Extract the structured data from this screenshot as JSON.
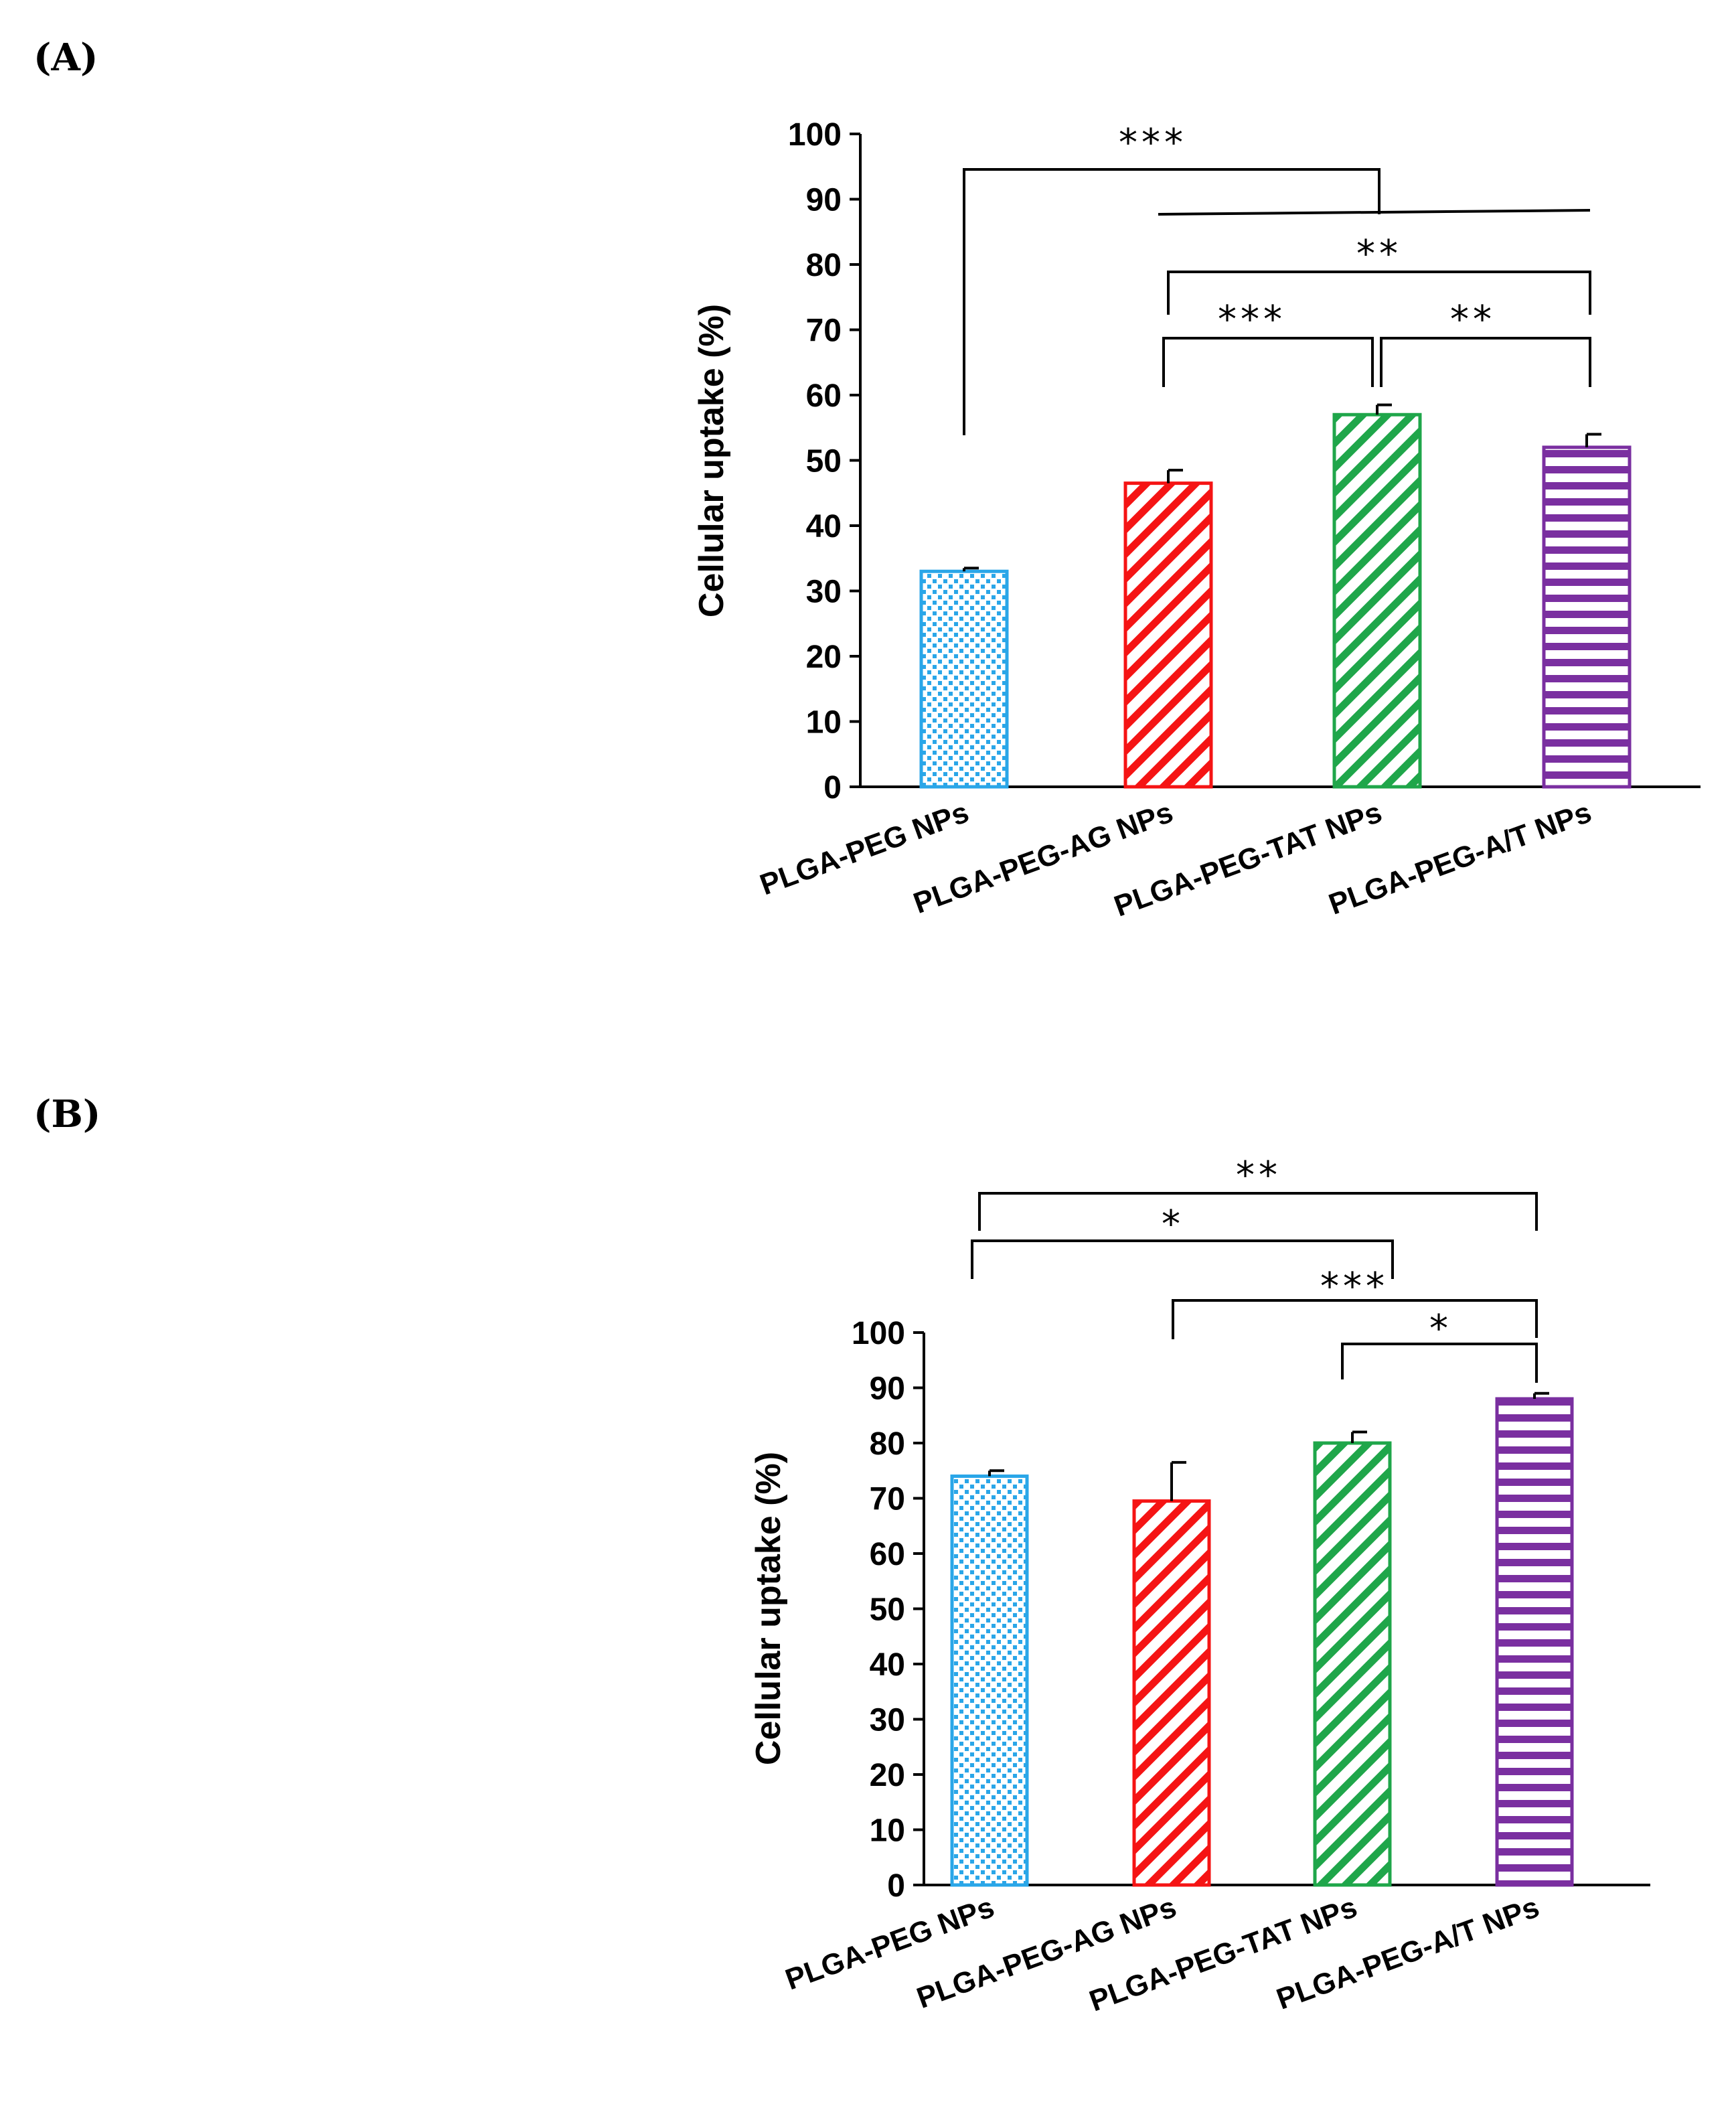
{
  "colors": {
    "PLGA-PEG NPs": "#2aa6e8",
    "PLGA-PEG-AG NPs": "#f51414",
    "PLGA-PEG-TAT NPs": "#1fa64a",
    "PLGA-PEG-A/T NPs": "#7a2fa0"
  },
  "chart_data": [
    {
      "panel": "(A)",
      "type": "bar",
      "ylabel": "Cellular uptake (%)",
      "ylim": [
        0,
        100
      ],
      "yticks": [
        0,
        10,
        20,
        30,
        40,
        50,
        60,
        70,
        80,
        90,
        100
      ],
      "categories": [
        "PLGA-PEG NPs",
        "PLGA-PEG-AG NPs",
        "PLGA-PEG-TAT NPs",
        "PLGA-PEG-A/T NPs"
      ],
      "values": [
        33,
        46.5,
        57,
        52
      ],
      "errors": [
        0.5,
        2,
        1.5,
        2
      ],
      "patterns": [
        "dots",
        "diagonal",
        "diagonal",
        "horizontal"
      ],
      "significance": [
        {
          "label": "***",
          "groups": [
            0,
            1,
            2,
            3
          ]
        },
        {
          "label": "**",
          "groups": [
            1,
            3
          ]
        },
        {
          "label": "***",
          "groups": [
            1,
            2
          ]
        },
        {
          "label": "**",
          "groups": [
            2,
            3
          ]
        }
      ]
    },
    {
      "panel": "(B)",
      "type": "bar",
      "ylabel": "Cellular uptake (%)",
      "ylim": [
        0,
        100
      ],
      "yticks": [
        0,
        10,
        20,
        30,
        40,
        50,
        60,
        70,
        80,
        90,
        100
      ],
      "categories": [
        "PLGA-PEG NPs",
        "PLGA-PEG-AG NPs",
        "PLGA-PEG-TAT NPs",
        "PLGA-PEG-A/T NPs"
      ],
      "values": [
        74,
        69.5,
        80,
        88
      ],
      "errors": [
        1,
        7,
        2,
        1
      ],
      "patterns": [
        "dots",
        "diagonal",
        "diagonal",
        "horizontal"
      ],
      "significance": [
        {
          "label": "**",
          "groups": [
            0,
            3
          ]
        },
        {
          "label": "*",
          "groups": [
            0,
            2
          ]
        },
        {
          "label": "***",
          "groups": [
            1,
            3
          ]
        },
        {
          "label": "*",
          "groups": [
            2,
            3
          ]
        }
      ]
    }
  ]
}
